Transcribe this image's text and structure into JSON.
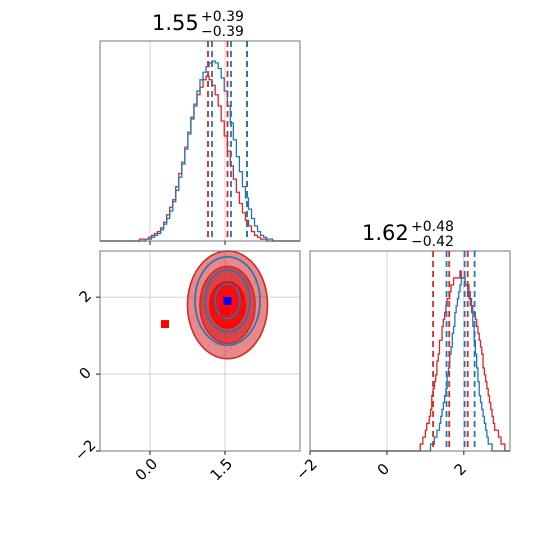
{
  "colors": {
    "series_a": "#d62728",
    "series_b": "#1f77b4",
    "marker_a": "#ff0000",
    "marker_b": "#0000ff",
    "grid": "#c8c8c8"
  },
  "chart_data": {
    "type": "corner",
    "parameters": [
      {
        "title_value": "1.55",
        "title_plus": "+0.39",
        "title_minus": "−0.39",
        "range": [
          -1.0,
          3.0
        ],
        "tick_values": [
          0.0,
          1.5
        ],
        "tick_labels": [
          "0.0",
          "1.5"
        ],
        "grid_values": [
          0.0,
          1.5
        ],
        "quantile_lines": {
          "series_a": [
            1.16,
            1.55,
            1.94
          ],
          "series_b": [
            1.24,
            1.62,
            1.94
          ]
        }
      },
      {
        "title_value": "1.62",
        "title_plus": "+0.48",
        "title_minus": "−0.42",
        "range": [
          -2.0,
          3.2
        ],
        "tick_values": [
          -2,
          0,
          2
        ],
        "tick_labels": [
          "−2",
          "0",
          "2"
        ],
        "grid_values": [
          0,
          2
        ],
        "quantile_lines": {
          "series_a": [
            1.2,
            1.62,
            2.1
          ],
          "series_b": [
            1.55,
            2.02,
            2.28
          ]
        }
      }
    ],
    "series": [
      {
        "color": "#d62728",
        "histogram_1d_x": {
          "bins": [
            -1.0,
            3.0
          ],
          "counts": [
            0,
            0,
            0,
            0,
            0,
            0,
            0,
            0,
            0,
            0,
            0,
            0,
            0,
            1,
            1,
            1,
            2,
            3,
            4,
            5,
            7,
            10,
            14,
            18,
            22,
            29,
            36,
            42,
            50,
            58,
            66,
            72,
            78,
            82,
            86,
            88,
            86,
            83,
            78,
            72,
            64,
            56,
            48,
            40,
            33,
            26,
            20,
            15,
            11,
            8,
            5,
            3,
            2,
            1,
            1,
            0,
            0,
            0,
            0,
            0,
            0,
            0,
            0,
            0,
            0,
            0
          ]
        },
        "histogram_1d_y": {
          "bins": [
            -2.0,
            3.2
          ],
          "counts": [
            0,
            0,
            0,
            0,
            0,
            0,
            0,
            0,
            0,
            0,
            0,
            0,
            0,
            0,
            0,
            0,
            0,
            0,
            0,
            0,
            0,
            0,
            0,
            0,
            0,
            0,
            0,
            0,
            0,
            0,
            0,
            0,
            0,
            0,
            0,
            0,
            0,
            0,
            0,
            0,
            0,
            0,
            0,
            0,
            0,
            0,
            0,
            0,
            0,
            0,
            0,
            0,
            0,
            0,
            0,
            0,
            0,
            0,
            0,
            0,
            0,
            0,
            0,
            0,
            0,
            0,
            0,
            0,
            0,
            0,
            0,
            0,
            0,
            0,
            0,
            0,
            0,
            0,
            0,
            0,
            0,
            0,
            0,
            0,
            0,
            0,
            1,
            1,
            2,
            2,
            3,
            4,
            4,
            5,
            6,
            8,
            9,
            10,
            11,
            13,
            14,
            16,
            16,
            18,
            19,
            20,
            21,
            22,
            22,
            23,
            24,
            24,
            25,
            25,
            25,
            25,
            25,
            26,
            25,
            25,
            25,
            24,
            24,
            24,
            23,
            22,
            21,
            20,
            20,
            19,
            18,
            17,
            16,
            15,
            14,
            12,
            11,
            10,
            9,
            8,
            7,
            6,
            5,
            4,
            3,
            3,
            3,
            2,
            2,
            1,
            1,
            1,
            0,
            0,
            0,
            0
          ]
        }
      },
      {
        "color": "#1f77b4",
        "histogram_1d_x": {
          "bins": [
            -1.0,
            3.0
          ],
          "counts": [
            0,
            0,
            0,
            0,
            0,
            0,
            0,
            0,
            0,
            0,
            0,
            0,
            0,
            0,
            0,
            1,
            1,
            2,
            3,
            4,
            6,
            9,
            12,
            16,
            21,
            27,
            34,
            41,
            49,
            57,
            65,
            73,
            80,
            86,
            90,
            93,
            95,
            96,
            95,
            92,
            87,
            80,
            72,
            63,
            54,
            45,
            37,
            29,
            23,
            17,
            12,
            8,
            5,
            3,
            2,
            1,
            1,
            0,
            0,
            0,
            0,
            0,
            0,
            0,
            0,
            0
          ]
        },
        "histogram_1d_y": {
          "bins": [
            -2.0,
            3.2
          ],
          "counts": [
            0,
            0,
            0,
            0,
            0,
            0,
            0,
            0,
            0,
            0,
            0,
            0,
            0,
            0,
            0,
            0,
            0,
            0,
            0,
            0,
            0,
            0,
            0,
            0,
            0,
            0,
            0,
            0,
            0,
            0,
            0,
            0,
            0,
            0,
            0,
            0,
            0,
            0,
            0,
            0,
            0,
            0,
            0,
            0,
            0,
            0,
            0,
            0,
            0,
            0,
            0,
            0,
            0,
            0,
            0,
            0,
            0,
            0,
            0,
            0,
            0,
            0,
            0,
            0,
            0,
            0,
            0,
            0,
            0,
            0,
            0,
            0,
            0,
            0,
            0,
            0,
            0,
            0,
            0,
            0,
            0,
            0,
            0,
            0,
            0,
            0,
            0,
            0,
            0,
            0,
            0,
            0,
            0,
            0,
            1,
            1,
            1,
            2,
            2,
            3,
            3,
            4,
            5,
            6,
            7,
            8,
            9,
            11,
            12,
            14,
            15,
            17,
            18,
            20,
            21,
            22,
            23,
            24,
            25,
            25,
            25,
            24,
            24,
            23,
            22,
            21,
            20,
            18,
            16,
            14,
            12,
            10,
            8,
            7,
            6,
            5,
            4,
            3,
            2,
            1,
            1,
            1,
            0,
            0,
            0,
            0,
            0,
            0,
            0,
            0,
            0,
            0,
            0,
            0,
            0,
            0
          ]
        }
      }
    ],
    "markers": [
      {
        "x": 0.3,
        "y": 1.3,
        "color": "#ff0000",
        "shape": "square"
      },
      {
        "x": 1.5,
        "y": 1.6,
        "color": "#ff0000",
        "shape": "square"
      },
      {
        "x": 1.55,
        "y": 1.9,
        "color": "#0000ff",
        "shape": "square"
      }
    ],
    "contours_2d": [
      {
        "cx": 1.55,
        "cy": 1.8,
        "rx": 0.8,
        "ry": 1.4,
        "color": "#d62728",
        "fill_opacity": 0.55,
        "filled": true
      },
      {
        "cx": 1.55,
        "cy": 1.8,
        "rx": 0.55,
        "ry": 1.0,
        "color": "#d62728",
        "fill_opacity": 0.7,
        "filled": true
      },
      {
        "cx": 1.55,
        "cy": 1.8,
        "rx": 0.35,
        "ry": 0.6,
        "color": "#ff0000",
        "fill_opacity": 0.8,
        "filled": true
      },
      {
        "cx": 1.55,
        "cy": 1.9,
        "rx": 0.65,
        "ry": 1.15,
        "color": "#1f77b4",
        "fill_opacity": 0,
        "filled": false
      },
      {
        "cx": 1.55,
        "cy": 1.9,
        "rx": 0.45,
        "ry": 0.8,
        "color": "#1f77b4",
        "fill_opacity": 0,
        "filled": false
      },
      {
        "cx": 1.55,
        "cy": 1.9,
        "rx": 0.25,
        "ry": 0.45,
        "color": "#1f77b4",
        "fill_opacity": 0,
        "filled": false
      }
    ],
    "grid": true,
    "legend": "none"
  }
}
